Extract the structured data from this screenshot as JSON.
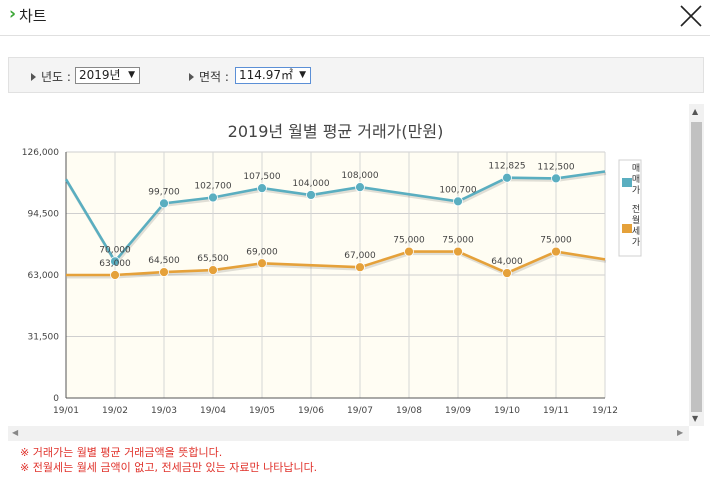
{
  "header": {
    "title": "차트"
  },
  "filters": {
    "year_label": "년도 :",
    "year_value": "2019년",
    "area_label": "면적 :",
    "area_value": "114.97㎡"
  },
  "chart_data": {
    "type": "line",
    "title": "2019년 월별 평균 거래가(만원)",
    "categories": [
      "19/01",
      "19/02",
      "19/03",
      "19/04",
      "19/05",
      "19/06",
      "19/07",
      "19/08",
      "19/09",
      "19/10",
      "19/11",
      "19/12"
    ],
    "ylim": [
      0,
      126000
    ],
    "yticks": [
      "0",
      "31,500",
      "63,000",
      "94,500",
      "126,000"
    ],
    "ytick_values": [
      0,
      31500,
      63000,
      94500,
      126000
    ],
    "grid": true,
    "legend_position": "right",
    "series": [
      {
        "name": "매매가",
        "color": "#5aaec0",
        "values": [
          112000,
          70000,
          99700,
          102700,
          107500,
          104000,
          108000,
          null,
          100700,
          112825,
          112500,
          116000
        ],
        "labels": [
          "",
          "70,000",
          "99,700",
          "102,700",
          "107,500",
          "104,000",
          "108,000",
          "",
          "100,700",
          "112,825",
          "112,500",
          ""
        ]
      },
      {
        "name": "전월세가",
        "color": "#e5a13a",
        "values": [
          63000,
          63000,
          64500,
          65500,
          69000,
          null,
          67000,
          75000,
          75000,
          64000,
          75000,
          71000
        ],
        "labels": [
          "",
          "63,000",
          "64,500",
          "65,500",
          "69,000",
          "",
          "67,000",
          "75,000",
          "75,000",
          "64,000",
          "75,000",
          ""
        ]
      }
    ],
    "legend_glyphs": {
      "s1": [
        "매",
        "매",
        "가"
      ],
      "s2": [
        "전",
        "월",
        "세",
        "가"
      ]
    }
  },
  "notes": [
    "※ 거래가는 월별 평균 거래금액을 뜻합니다.",
    "※ 전월세는 월세 금액이 없고, 전세금만 있는 자료만 나타납니다."
  ]
}
